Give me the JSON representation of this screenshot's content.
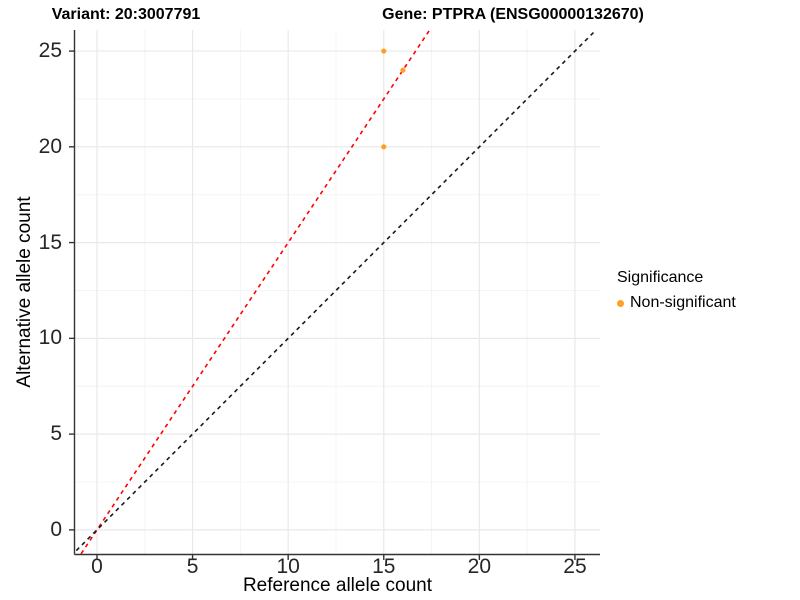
{
  "titles": {
    "left": "Variant: 20:3007791",
    "right": "Gene: PTPRA (ENSG00000132670)"
  },
  "chart_data": {
    "type": "scatter",
    "title_left": "Variant: 20:3007791",
    "title_right": "Gene: PTPRA (ENSG00000132670)",
    "xlabel": "Reference allele count",
    "ylabel": "Alternative allele count",
    "x_ticks": [
      0,
      5,
      10,
      15,
      20,
      25
    ],
    "y_ticks": [
      0,
      5,
      10,
      15,
      20,
      25
    ],
    "x_minor_ticks": [
      2.5,
      7.5,
      12.5,
      17.5,
      22.5
    ],
    "y_minor_ticks": [
      2.5,
      7.5,
      12.5,
      17.5,
      22.5
    ],
    "x_range": [
      -1.15,
      26.31
    ],
    "y_range": [
      -1.26,
      26.1
    ],
    "grid": true,
    "series": [
      {
        "name": "Non-significant",
        "color": "#FFA024",
        "points": [
          {
            "x": 15,
            "y": 25
          },
          {
            "x": 16,
            "y": 24
          },
          {
            "x": 15,
            "y": 20
          }
        ]
      }
    ],
    "lines": [
      {
        "name": "fitted-ratio-line",
        "slope": 1.5,
        "intercept": 0,
        "color": "#FF0000",
        "style": "dashed"
      },
      {
        "name": "identity-line",
        "slope": 1.0,
        "intercept": 0,
        "color": "#1A1A1A",
        "style": "dashed"
      }
    ],
    "legend": {
      "title": "Significance",
      "position": "right",
      "items": [
        {
          "label": "Non-significant",
          "color": "#FFA024"
        }
      ]
    },
    "colors": {
      "major_grid": "#E9E9E9",
      "minor_grid": "#F4F4F4",
      "axis_line": "#333333",
      "tick_mark": "#333333",
      "panel_background": "#FFFFFF"
    }
  }
}
